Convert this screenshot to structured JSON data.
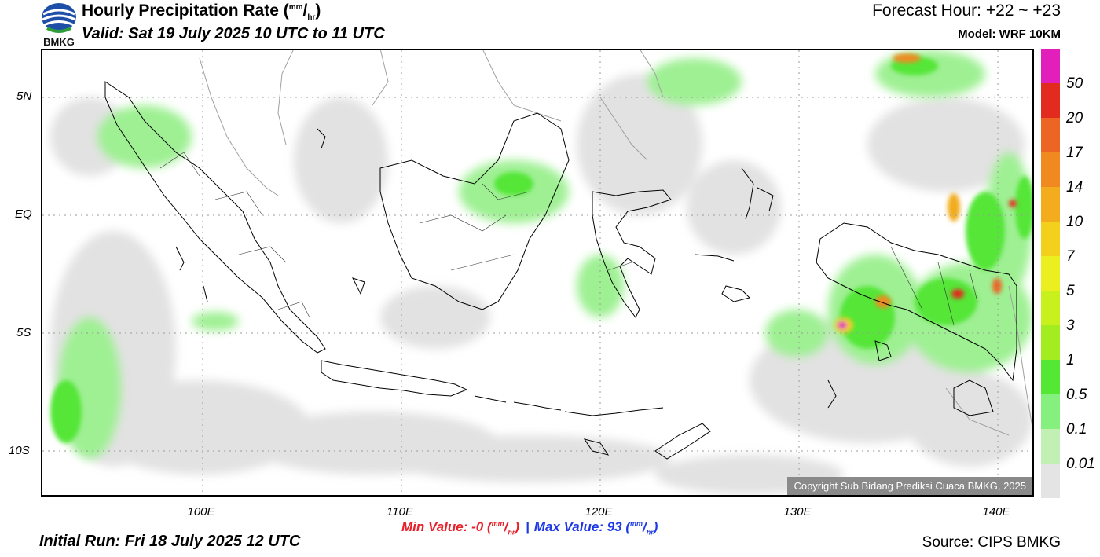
{
  "header": {
    "logo_text": "BMKG",
    "title": "Hourly Precipitation Rate (",
    "title_unit_num": "mm",
    "title_unit_den": "hr",
    "title_close": ")",
    "valid": "Valid: Sat 19 July 2025 10 UTC to 11 UTC",
    "forecast": "Forecast Hour: +22 ~ +23",
    "model": "Model: WRF 10KM"
  },
  "map": {
    "lat_labels": [
      "5N",
      "EQ",
      "5S",
      "10S"
    ],
    "lon_labels": [
      "100E",
      "110E",
      "120E",
      "130E",
      "140E"
    ],
    "copyright": "Copyright Sub Bidang Prediksi Cuaca BMKG, 2025"
  },
  "colorbar": {
    "labels": [
      "50",
      "20",
      "17",
      "14",
      "10",
      "7",
      "5",
      "3",
      "1",
      "0.5",
      "0.1",
      "0.01"
    ],
    "colors": [
      "#e21fba",
      "#e22a1f",
      "#ec6524",
      "#f08a20",
      "#f2ac1e",
      "#f2d01c",
      "#ecef1f",
      "#c8f01d",
      "#a3ec1f",
      "#54e834",
      "#86f07e",
      "#c2f0b4",
      "#e4e4e4"
    ]
  },
  "footer": {
    "min_label": "Min Value:  -0 (",
    "min_close": ")",
    "max_label": "Max Value:  93 (",
    "max_close": ")",
    "unit_num": "mm",
    "unit_den": "hr",
    "initial": "Initial Run: Fri 18 July 2025 12 UTC",
    "source": "Source: CIPS BMKG"
  }
}
